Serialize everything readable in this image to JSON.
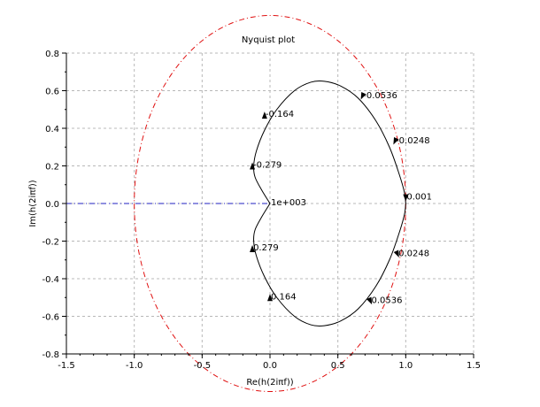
{
  "chart_data": {
    "type": "line",
    "title": "Nyquist plot",
    "xlabel": "Re(h(2iπf))",
    "ylabel": "Im(h(2iπf))",
    "xlim": [
      -1.5,
      1.5
    ],
    "ylim": [
      -0.8,
      0.8
    ],
    "grid": true,
    "x_ticks": [
      -1.5,
      -1.0,
      -0.5,
      0.0,
      0.5,
      1.0,
      1.5
    ],
    "x_tick_labels": [
      "-1.5",
      "-1.0",
      "-0.5",
      "0.0",
      "0.5",
      "1.0",
      "1.5"
    ],
    "y_ticks": [
      0.8,
      0.6,
      0.4,
      0.2,
      0.0,
      -0.2,
      -0.4,
      -0.6,
      -0.8
    ],
    "y_tick_labels": [
      "0.8",
      "0.6",
      "0.4",
      "0.2",
      "0.0",
      "-0.2",
      "-0.4",
      "-0.6",
      "-0.8"
    ],
    "colors": {
      "curve": "#000000",
      "unit_circle": "#e01010",
      "critical_line": "#2020c0",
      "grid": "#b8b8b8"
    },
    "series": [
      {
        "name": "nyquist-curve-upper",
        "x": [
          0.0,
          -0.06,
          -0.11,
          -0.12,
          -0.1,
          -0.04,
          0.05,
          0.18,
          0.3,
          0.4,
          0.52,
          0.65,
          0.78,
          0.88,
          0.95,
          0.99,
          1.0
        ],
        "y": [
          0.0,
          0.07,
          0.14,
          0.2,
          0.28,
          0.39,
          0.5,
          0.6,
          0.645,
          0.65,
          0.625,
          0.56,
          0.44,
          0.3,
          0.16,
          0.06,
          0.0
        ]
      },
      {
        "name": "nyquist-curve-lower",
        "x": [
          0.0,
          -0.06,
          -0.11,
          -0.12,
          -0.1,
          -0.04,
          0.05,
          0.18,
          0.3,
          0.4,
          0.52,
          0.65,
          0.78,
          0.88,
          0.95,
          0.99,
          1.0
        ],
        "y": [
          0.0,
          -0.07,
          -0.14,
          -0.2,
          -0.28,
          -0.39,
          -0.5,
          -0.6,
          -0.645,
          -0.65,
          -0.625,
          -0.56,
          -0.44,
          -0.3,
          -0.16,
          -0.06,
          0.0
        ]
      }
    ],
    "unit_circle": {
      "center": [
        0,
        0
      ],
      "radius": 1
    },
    "critical_line": {
      "x": [
        -1.5,
        0.0
      ],
      "y": [
        0.0,
        0.0
      ]
    },
    "annotations": [
      {
        "text": "-0.0536",
        "x": 0.68,
        "y": 0.57,
        "dir": "cw"
      },
      {
        "text": "-0.164",
        "x": -0.04,
        "y": 0.47,
        "dir": "up"
      },
      {
        "text": "-0.0248",
        "x": 0.92,
        "y": 0.33,
        "dir": "cw"
      },
      {
        "text": "-0.279",
        "x": -0.13,
        "y": 0.2,
        "dir": "up"
      },
      {
        "text": "1e+003",
        "x": 0.0,
        "y": 0.0,
        "dir": "none"
      },
      {
        "text": "0.001",
        "x": 1.0,
        "y": 0.03,
        "dir": "down"
      },
      {
        "text": "0.279",
        "x": -0.13,
        "y": -0.24,
        "dir": "up"
      },
      {
        "text": "0.0248",
        "x": 0.94,
        "y": -0.27,
        "dir": "ccw"
      },
      {
        "text": "0.164",
        "x": 0.0,
        "y": -0.5,
        "dir": "up"
      },
      {
        "text": "0.0536",
        "x": 0.74,
        "y": -0.52,
        "dir": "ccw"
      }
    ]
  }
}
